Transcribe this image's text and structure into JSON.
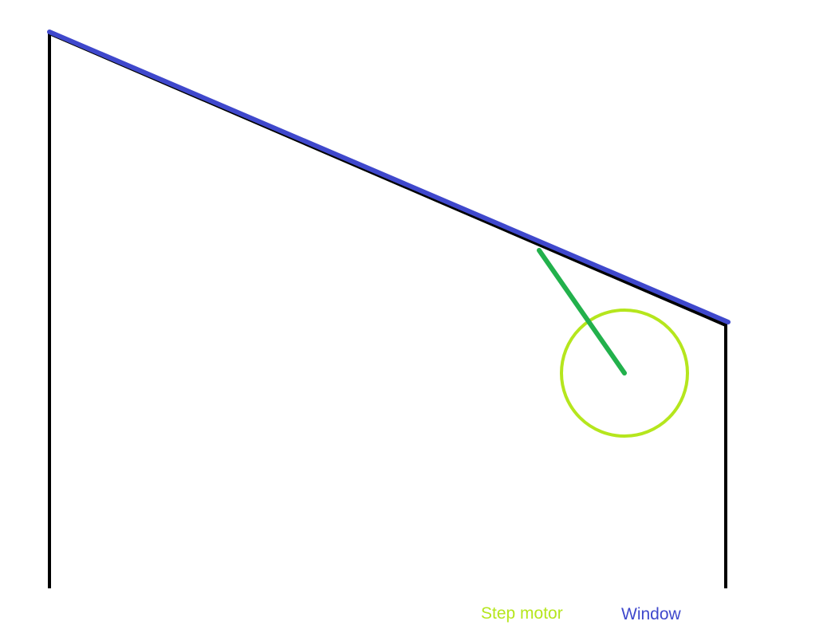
{
  "colors": {
    "background": "#ffffff",
    "frame": "#000000",
    "window": "#3f48cc",
    "motor_circle": "#b5e61d",
    "motor_arm": "#22b14c"
  },
  "legend": {
    "step_motor": "Step motor",
    "window": "Window"
  }
}
